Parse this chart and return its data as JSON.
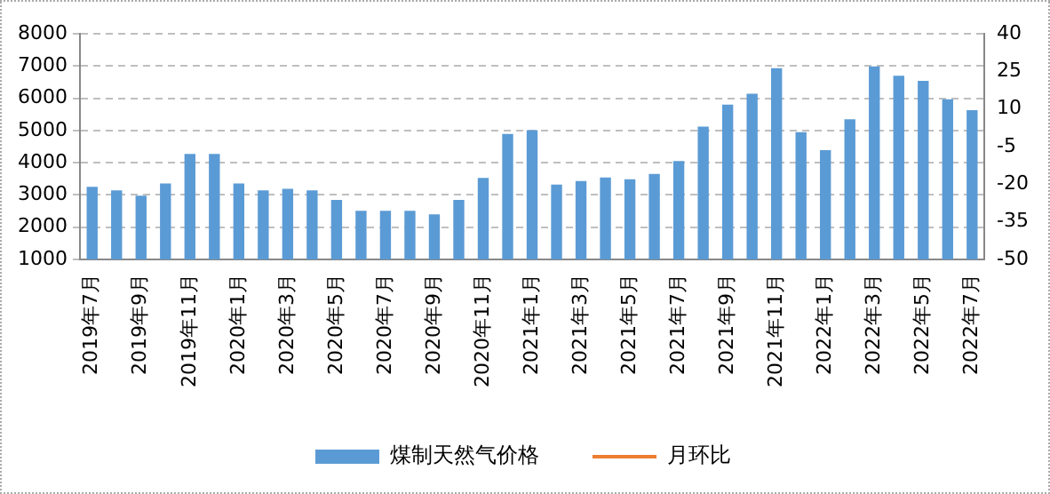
{
  "chart_data": {
    "type": "bar",
    "categories": [
      "2019年7月",
      null,
      "2019年9月",
      null,
      "2019年11月",
      null,
      "2020年1月",
      null,
      "2020年3月",
      null,
      "2020年5月",
      null,
      "2020年7月",
      null,
      "2020年9月",
      null,
      "2020年11月",
      null,
      "2021年1月",
      null,
      "2021年3月",
      null,
      "2021年5月",
      null,
      "2021年7月",
      null,
      "2021年9月",
      null,
      "2021年11月",
      null,
      "2022年1月",
      null,
      "2022年3月",
      null,
      "2022年5月",
      null,
      "2022年7月"
    ],
    "series": [
      {
        "name": "煤制天然气价格",
        "color": "#5b9bd5",
        "values": [
          3250,
          3140,
          2980,
          3360,
          4270,
          4270,
          3360,
          3140,
          3190,
          3140,
          2850,
          2510,
          2510,
          2510,
          2400,
          2850,
          3530,
          4890,
          5010,
          3320,
          3430,
          3540,
          3490,
          3650,
          4050,
          5120,
          5800,
          6140,
          6930,
          4950,
          4390,
          5350,
          6990,
          6700,
          6540,
          5970,
          5630
        ]
      },
      {
        "name": "月环比",
        "type": "line",
        "axis": "y2",
        "color": "#ed7d31",
        "values": [
          null,
          null,
          null,
          null,
          null,
          null,
          null,
          null,
          null,
          null,
          null,
          null,
          null,
          null,
          null,
          null,
          null,
          null,
          null,
          null,
          null,
          null,
          null,
          null,
          null,
          null,
          null,
          null,
          null,
          null,
          null,
          null,
          null,
          null,
          null,
          null,
          null
        ]
      }
    ],
    "ylim": [
      1000,
      8000
    ],
    "yticks": [
      1000,
      2000,
      3000,
      4000,
      5000,
      6000,
      7000,
      8000
    ],
    "y2lim": [
      -50,
      40
    ],
    "y2ticks": [
      -50,
      -35,
      -20,
      -5,
      10,
      25,
      40
    ],
    "grid": "y",
    "legend": "bottom"
  }
}
